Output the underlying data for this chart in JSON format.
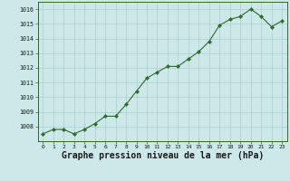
{
  "x": [
    0,
    1,
    2,
    3,
    4,
    5,
    6,
    7,
    8,
    9,
    10,
    11,
    12,
    13,
    14,
    15,
    16,
    17,
    18,
    19,
    20,
    21,
    22,
    23
  ],
  "y": [
    1007.5,
    1007.8,
    1007.8,
    1007.5,
    1007.8,
    1008.2,
    1008.7,
    1008.7,
    1009.5,
    1010.4,
    1011.3,
    1011.7,
    1012.1,
    1012.1,
    1012.6,
    1013.1,
    1013.8,
    1014.9,
    1015.3,
    1015.5,
    1016.0,
    1015.5,
    1014.8,
    1015.2
  ],
  "line_color": "#2d6a2d",
  "marker_color": "#2d6a2d",
  "bg_color": "#cce8e8",
  "grid_color": "#aacfcf",
  "title": "Graphe pression niveau de la mer (hPa)",
  "ylim_min": 1007.0,
  "ylim_max": 1016.5,
  "title_fontsize": 7.0
}
